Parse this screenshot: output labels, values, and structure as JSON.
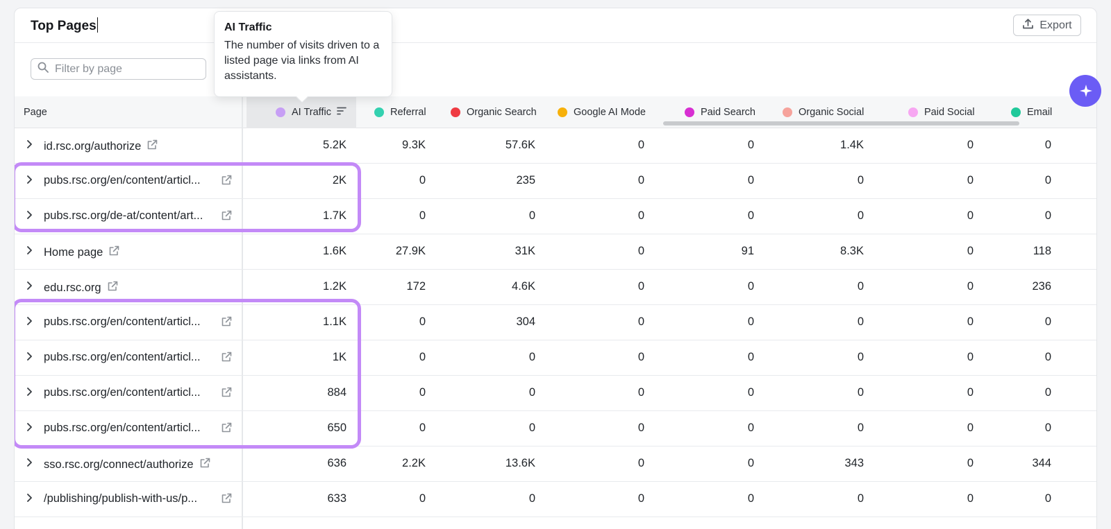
{
  "header": {
    "title": "Top Pages",
    "export_label": "Export"
  },
  "filter": {
    "placeholder": "Filter by page"
  },
  "tooltip": {
    "title": "AI Traffic",
    "text": "The number of visits driven to a listed page via links from AI assistants."
  },
  "columns": [
    {
      "label": "Page"
    },
    {
      "label": "AI Traffic",
      "color": "#c79ff5"
    },
    {
      "label": "Referral",
      "color": "#34d1b0"
    },
    {
      "label": "Organic Search",
      "color": "#ef3b43"
    },
    {
      "label": "Google AI Mode",
      "color": "#f7b10b"
    },
    {
      "label": "Paid Search",
      "color": "#d72fd2"
    },
    {
      "label": "Organic Social",
      "color": "#f6a39c"
    },
    {
      "label": "Paid Social",
      "color": "#f7a7f2"
    },
    {
      "label": "Email",
      "color": "#20c99a"
    }
  ],
  "rows": [
    {
      "page": "id.rsc.org/authorize",
      "v": [
        "5.2K",
        "9.3K",
        "57.6K",
        "0",
        "0",
        "1.4K",
        "0",
        "0"
      ]
    },
    {
      "page": "pubs.rsc.org/en/content/articl...",
      "v": [
        "2K",
        "0",
        "235",
        "0",
        "0",
        "0",
        "0",
        "0"
      ]
    },
    {
      "page": "pubs.rsc.org/de-at/content/art...",
      "v": [
        "1.7K",
        "0",
        "0",
        "0",
        "0",
        "0",
        "0",
        "0"
      ]
    },
    {
      "page": "Home page",
      "v": [
        "1.6K",
        "27.9K",
        "31K",
        "0",
        "91",
        "8.3K",
        "0",
        "118"
      ]
    },
    {
      "page": "edu.rsc.org",
      "v": [
        "1.2K",
        "172",
        "4.6K",
        "0",
        "0",
        "0",
        "0",
        "236"
      ]
    },
    {
      "page": "pubs.rsc.org/en/content/articl...",
      "v": [
        "1.1K",
        "0",
        "304",
        "0",
        "0",
        "0",
        "0",
        "0"
      ]
    },
    {
      "page": "pubs.rsc.org/en/content/articl...",
      "v": [
        "1K",
        "0",
        "0",
        "0",
        "0",
        "0",
        "0",
        "0"
      ]
    },
    {
      "page": "pubs.rsc.org/en/content/articl...",
      "v": [
        "884",
        "0",
        "0",
        "0",
        "0",
        "0",
        "0",
        "0"
      ]
    },
    {
      "page": "pubs.rsc.org/en/content/articl...",
      "v": [
        "650",
        "0",
        "0",
        "0",
        "0",
        "0",
        "0",
        "0"
      ]
    },
    {
      "page": "sso.rsc.org/connect/authorize",
      "v": [
        "636",
        "2.2K",
        "13.6K",
        "0",
        "0",
        "343",
        "0",
        "344"
      ]
    },
    {
      "page": "/publishing/publish-with-us/p...",
      "v": [
        "633",
        "0",
        "0",
        "0",
        "0",
        "0",
        "0",
        "0"
      ]
    }
  ]
}
